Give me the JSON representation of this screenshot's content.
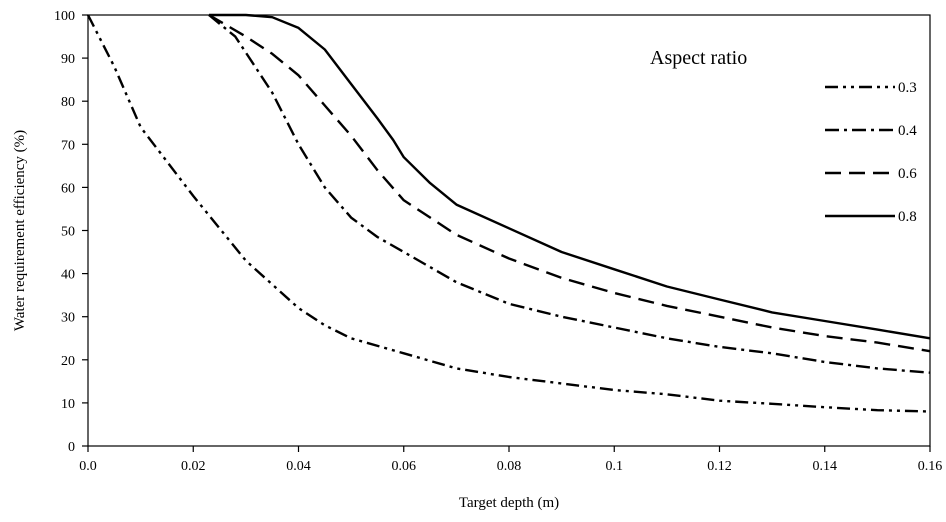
{
  "chart_data": {
    "type": "line",
    "title": "",
    "xlabel": "Target depth (m)",
    "ylabel": "Water requirement efficiency (%)",
    "xlim": [
      0,
      0.16
    ],
    "ylim": [
      0,
      100
    ],
    "x_ticks": [
      "0.0",
      "0.02",
      "0.04",
      "0.06",
      "0.08",
      "0.1",
      "0.12",
      "0.14",
      "0.16"
    ],
    "y_ticks": [
      "0",
      "10",
      "20",
      "30",
      "40",
      "50",
      "60",
      "70",
      "80",
      "90",
      "100"
    ],
    "grid": false,
    "legend": {
      "title": "Aspect ratio",
      "position": "top-right"
    },
    "series": [
      {
        "name": "0.3",
        "style": "dash-dot-dot",
        "points": [
          [
            0,
            100
          ],
          [
            0.005,
            88
          ],
          [
            0.01,
            74
          ],
          [
            0.02,
            58
          ],
          [
            0.03,
            43
          ],
          [
            0.04,
            32
          ],
          [
            0.045,
            28
          ],
          [
            0.05,
            25
          ],
          [
            0.06,
            21.5
          ],
          [
            0.07,
            18
          ],
          [
            0.08,
            16
          ],
          [
            0.09,
            14.5
          ],
          [
            0.1,
            13
          ],
          [
            0.11,
            12
          ],
          [
            0.12,
            10.5
          ],
          [
            0.13,
            9.8
          ],
          [
            0.14,
            9
          ],
          [
            0.15,
            8.3
          ],
          [
            0.16,
            8
          ]
        ]
      },
      {
        "name": "0.4",
        "style": "dash-dot",
        "points": [
          [
            0.023,
            100
          ],
          [
            0.028,
            95
          ],
          [
            0.035,
            82
          ],
          [
            0.04,
            70
          ],
          [
            0.045,
            60
          ],
          [
            0.05,
            53
          ],
          [
            0.055,
            48.5
          ],
          [
            0.06,
            45
          ],
          [
            0.07,
            38
          ],
          [
            0.08,
            33
          ],
          [
            0.09,
            30
          ],
          [
            0.1,
            27.5
          ],
          [
            0.11,
            25
          ],
          [
            0.12,
            23
          ],
          [
            0.13,
            21.5
          ],
          [
            0.14,
            19.5
          ],
          [
            0.15,
            18
          ],
          [
            0.16,
            17
          ]
        ]
      },
      {
        "name": "0.6",
        "style": "long-dash",
        "points": [
          [
            0.023,
            100
          ],
          [
            0.03,
            95
          ],
          [
            0.035,
            91
          ],
          [
            0.04,
            86
          ],
          [
            0.045,
            79
          ],
          [
            0.05,
            72
          ],
          [
            0.055,
            64
          ],
          [
            0.06,
            57
          ],
          [
            0.07,
            49
          ],
          [
            0.08,
            43.5
          ],
          [
            0.09,
            39
          ],
          [
            0.1,
            35.5
          ],
          [
            0.11,
            32.5
          ],
          [
            0.12,
            30
          ],
          [
            0.13,
            27.5
          ],
          [
            0.14,
            25.5
          ],
          [
            0.15,
            24
          ],
          [
            0.16,
            22
          ]
        ]
      },
      {
        "name": "0.8",
        "style": "solid",
        "points": [
          [
            0.023,
            100
          ],
          [
            0.03,
            100
          ],
          [
            0.035,
            99.5
          ],
          [
            0.04,
            97
          ],
          [
            0.045,
            92
          ],
          [
            0.05,
            84
          ],
          [
            0.055,
            76
          ],
          [
            0.058,
            71
          ],
          [
            0.06,
            67
          ],
          [
            0.065,
            61
          ],
          [
            0.07,
            56
          ],
          [
            0.08,
            50.5
          ],
          [
            0.09,
            45
          ],
          [
            0.1,
            41
          ],
          [
            0.11,
            37
          ],
          [
            0.12,
            34
          ],
          [
            0.13,
            31
          ],
          [
            0.14,
            29
          ],
          [
            0.15,
            27
          ],
          [
            0.16,
            25
          ]
        ]
      }
    ]
  }
}
